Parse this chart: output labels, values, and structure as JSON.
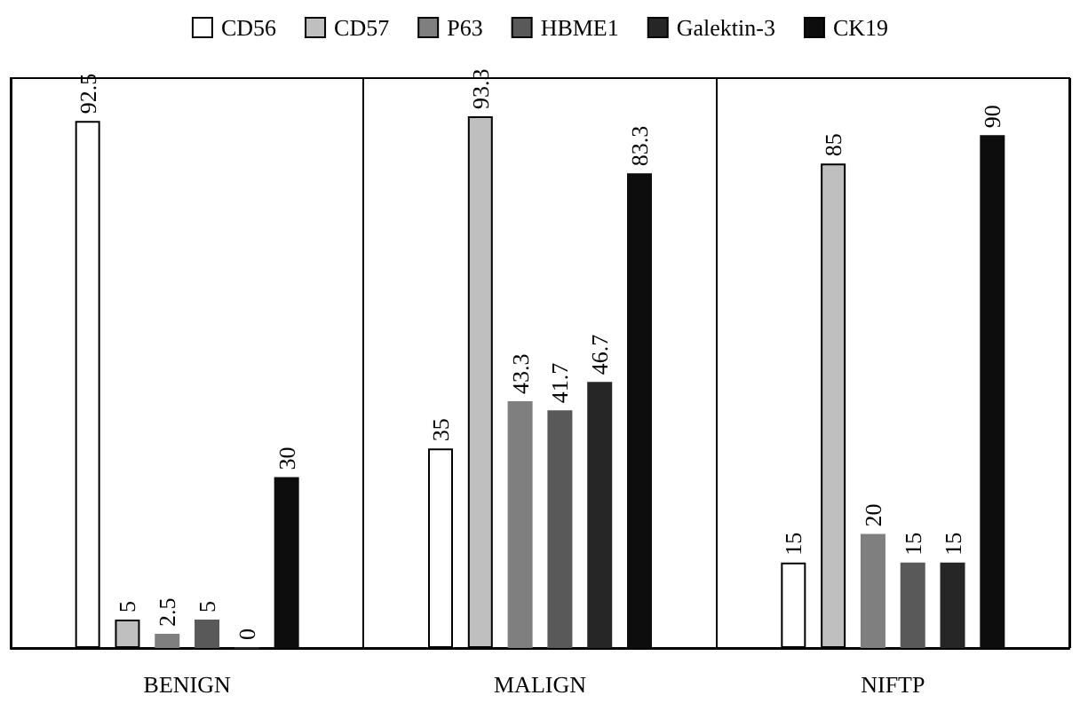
{
  "chart_data": {
    "type": "bar",
    "categories": [
      "BENIGN",
      "MALIGN",
      "NIFTP"
    ],
    "series": [
      {
        "name": "CD56",
        "color": "#ffffff",
        "values": [
          92.5,
          35,
          15
        ]
      },
      {
        "name": "CD57",
        "color": "#bfbfbf",
        "values": [
          5,
          93.3,
          85
        ]
      },
      {
        "name": "P63",
        "color": "#7f7f7f",
        "values": [
          2.5,
          43.3,
          20
        ]
      },
      {
        "name": "HBME1",
        "color": "#595959",
        "values": [
          5,
          41.7,
          15
        ]
      },
      {
        "name": "Galektin-3",
        "color": "#262626",
        "values": [
          0,
          46.7,
          15
        ]
      },
      {
        "name": "CK19",
        "color": "#0d0d0d",
        "values": [
          30,
          83.3,
          90
        ]
      }
    ],
    "data_labels": true,
    "legend": "top",
    "grid": false
  }
}
